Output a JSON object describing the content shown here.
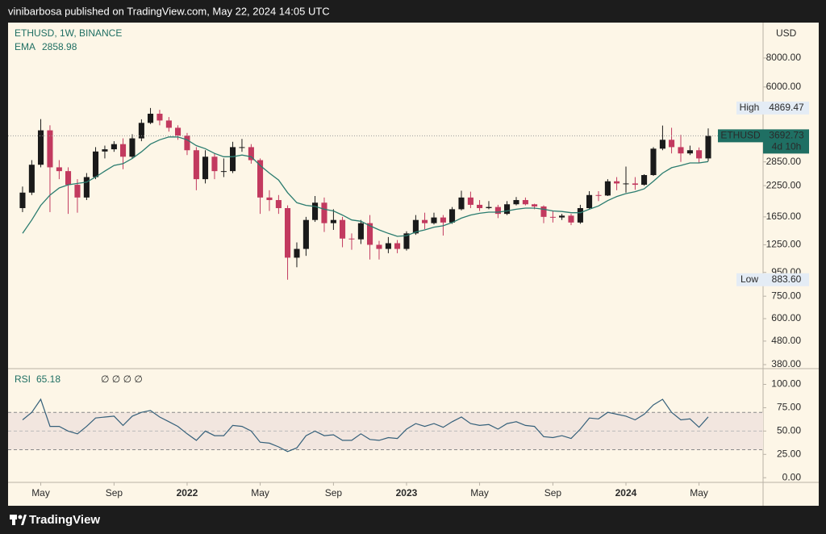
{
  "header": {
    "text": "vinibarbosa published on TradingView.com, May 22, 2024 14:05 UTC"
  },
  "footer": {
    "brand": "TradingView"
  },
  "chart_data": [
    {
      "type": "candlestick",
      "title": "ETHUSD, 1W, BINANCE",
      "currency": "USD",
      "log_scale": true,
      "grid": false,
      "up_color": "#1a1a1a",
      "down_color": "#c23a5f",
      "x": [
        2021.25,
        2021.292,
        2021.333,
        2021.375,
        2021.417,
        2021.458,
        2021.5,
        2021.542,
        2021.583,
        2021.625,
        2021.667,
        2021.708,
        2021.75,
        2021.792,
        2021.833,
        2021.875,
        2021.917,
        2021.958,
        2022.0,
        2022.042,
        2022.083,
        2022.125,
        2022.167,
        2022.208,
        2022.25,
        2022.292,
        2022.333,
        2022.375,
        2022.417,
        2022.458,
        2022.5,
        2022.542,
        2022.583,
        2022.625,
        2022.667,
        2022.708,
        2022.75,
        2022.792,
        2022.833,
        2022.875,
        2022.917,
        2022.958,
        2023.0,
        2023.042,
        2023.083,
        2023.125,
        2023.167,
        2023.208,
        2023.25,
        2023.292,
        2023.333,
        2023.375,
        2023.417,
        2023.458,
        2023.5,
        2023.542,
        2023.583,
        2023.625,
        2023.667,
        2023.708,
        2023.75,
        2023.792,
        2023.833,
        2023.875,
        2023.917,
        2023.958,
        2024.0,
        2024.042,
        2024.083,
        2024.125,
        2024.167,
        2024.208,
        2024.25,
        2024.292,
        2024.333,
        2024.375
      ],
      "open": [
        1800,
        2100,
        2770,
        3900,
        2700,
        2600,
        2270,
        2000,
        2450,
        3160,
        3230,
        3400,
        3000,
        3600,
        4200,
        4600,
        4300,
        4000,
        3700,
        3200,
        2400,
        3000,
        2600,
        2600,
        3300,
        3300,
        2900,
        2000,
        1950,
        1800,
        1100,
        1200,
        1600,
        1900,
        1550,
        1600,
        1330,
        1320,
        1550,
        1250,
        1200,
        1270,
        1200,
        1400,
        1600,
        1550,
        1640,
        1560,
        1780,
        2000,
        1860,
        1800,
        1820,
        1700,
        1870,
        1950,
        1870,
        1830,
        1650,
        1640,
        1670,
        1560,
        1800,
        2050,
        2040,
        2350,
        2300,
        2300,
        2270,
        2500,
        3250,
        3550,
        3300,
        3100,
        3200,
        2950
      ],
      "high": [
        2230,
        2900,
        4360,
        4100,
        2900,
        2700,
        2400,
        2550,
        3300,
        3350,
        3500,
        3600,
        3750,
        4350,
        4869.47,
        4780,
        4450,
        4100,
        3800,
        3300,
        3200,
        3100,
        2950,
        3480,
        3580,
        3400,
        2950,
        2150,
        2050,
        1850,
        1280,
        1650,
        2030,
        2000,
        1780,
        1650,
        1400,
        1600,
        1680,
        1300,
        1350,
        1310,
        1430,
        1680,
        1720,
        1720,
        1680,
        1820,
        2140,
        2120,
        1950,
        1930,
        1860,
        1930,
        2010,
        2000,
        1880,
        1850,
        1750,
        1700,
        1700,
        1860,
        2130,
        2130,
        2400,
        2450,
        2720,
        2450,
        2520,
        3300,
        4090,
        4000,
        3730,
        3350,
        3290,
        3975
      ],
      "low": [
        1730,
        2050,
        2700,
        1730,
        2400,
        1700,
        1720,
        1950,
        2400,
        2950,
        3150,
        2650,
        2950,
        3500,
        4150,
        4100,
        3850,
        3550,
        3050,
        2150,
        2300,
        2400,
        2450,
        2550,
        3150,
        2800,
        1700,
        1750,
        1700,
        883.6,
        1000,
        1120,
        1570,
        1420,
        1450,
        1220,
        1190,
        1260,
        1080,
        1080,
        1150,
        1150,
        1180,
        1380,
        1460,
        1530,
        1370,
        1540,
        1760,
        1800,
        1750,
        1780,
        1630,
        1680,
        1850,
        1850,
        1780,
        1550,
        1560,
        1600,
        1520,
        1540,
        1780,
        1930,
        2030,
        2150,
        2100,
        2160,
        2250,
        2480,
        3200,
        3100,
        2850,
        3050,
        2820,
        2870
      ],
      "close": [
        2100,
        2770,
        3900,
        2700,
        2600,
        2270,
        2000,
        2450,
        3160,
        3230,
        3400,
        3000,
        3600,
        4200,
        4600,
        4300,
        4000,
        3700,
        3200,
        2400,
        3000,
        2600,
        2600,
        3300,
        3300,
        2900,
        2000,
        1950,
        1800,
        1100,
        1200,
        1600,
        1900,
        1550,
        1600,
        1330,
        1320,
        1550,
        1250,
        1200,
        1270,
        1200,
        1400,
        1600,
        1550,
        1640,
        1560,
        1780,
        2000,
        1860,
        1800,
        1820,
        1700,
        1870,
        1950,
        1870,
        1830,
        1650,
        1640,
        1670,
        1560,
        1800,
        2050,
        2040,
        2350,
        2300,
        2300,
        2270,
        2500,
        3250,
        3550,
        3300,
        3100,
        3200,
        2950,
        3692.73
      ],
      "overlays": [
        {
          "name": "EMA",
          "color": "#2a7c6f",
          "values": [
            1400,
            1600,
            1850,
            2050,
            2200,
            2270,
            2300,
            2330,
            2450,
            2600,
            2750,
            2800,
            2950,
            3150,
            3400,
            3550,
            3650,
            3650,
            3550,
            3350,
            3250,
            3100,
            3000,
            3000,
            3050,
            3000,
            2750,
            2550,
            2380,
            2100,
            1900,
            1850,
            1830,
            1780,
            1750,
            1680,
            1600,
            1580,
            1510,
            1450,
            1400,
            1360,
            1370,
            1420,
            1450,
            1490,
            1510,
            1560,
            1630,
            1680,
            1710,
            1730,
            1730,
            1750,
            1780,
            1800,
            1800,
            1780,
            1750,
            1740,
            1720,
            1720,
            1780,
            1840,
            1940,
            2020,
            2080,
            2120,
            2180,
            2350,
            2550,
            2690,
            2750,
            2820,
            2820,
            2858.98
          ]
        }
      ],
      "xlim": [
        2021.184,
        2024.625
      ],
      "ylim": [
        368,
        11380
      ],
      "yticks": [
        {
          "value": 8000,
          "label": "8000.00"
        },
        {
          "value": 6000,
          "label": "6000.00"
        },
        {
          "value": 2850,
          "label": "2850.00"
        },
        {
          "value": 2250,
          "label": "2250.00"
        },
        {
          "value": 1650,
          "label": "1650.00"
        },
        {
          "value": 1250,
          "label": "1250.00"
        },
        {
          "value": 950,
          "label": "950.00"
        },
        {
          "value": 750,
          "label": "750.00"
        },
        {
          "value": 600,
          "label": "600.00"
        },
        {
          "value": 480,
          "label": "480.00"
        },
        {
          "value": 380,
          "label": "380.00"
        }
      ],
      "high_marker": {
        "label": "High",
        "value": 4869.47
      },
      "low_marker": {
        "label": "Low",
        "value": 883.6,
        "value_label": "883.60"
      },
      "last_price": {
        "name": "ETHUSD",
        "countdown": "4d 10h"
      }
    },
    {
      "type": "line",
      "title": "RSI",
      "flags": "∅ ∅ ∅ ∅",
      "x": [
        2021.25,
        2021.292,
        2021.333,
        2021.375,
        2021.417,
        2021.458,
        2021.5,
        2021.542,
        2021.583,
        2021.625,
        2021.667,
        2021.708,
        2021.75,
        2021.792,
        2021.833,
        2021.875,
        2021.917,
        2021.958,
        2022.0,
        2022.042,
        2022.083,
        2022.125,
        2022.167,
        2022.208,
        2022.25,
        2022.292,
        2022.333,
        2022.375,
        2022.417,
        2022.458,
        2022.5,
        2022.542,
        2022.583,
        2022.625,
        2022.667,
        2022.708,
        2022.75,
        2022.792,
        2022.833,
        2022.875,
        2022.917,
        2022.958,
        2023.0,
        2023.042,
        2023.083,
        2023.125,
        2023.167,
        2023.208,
        2023.25,
        2023.292,
        2023.333,
        2023.375,
        2023.417,
        2023.458,
        2023.5,
        2023.542,
        2023.583,
        2023.625,
        2023.667,
        2023.708,
        2023.75,
        2023.792,
        2023.833,
        2023.875,
        2023.917,
        2023.958,
        2024.0,
        2024.042,
        2024.083,
        2024.125,
        2024.167,
        2024.208,
        2024.25,
        2024.292,
        2024.333,
        2024.375
      ],
      "series": [
        {
          "name": "RSI",
          "color": "#35607a",
          "values": [
            62,
            70,
            84,
            55,
            55,
            50,
            47,
            55,
            64,
            65,
            66,
            56,
            66,
            70,
            72,
            65,
            60,
            55,
            47,
            40,
            50,
            45,
            45,
            56,
            55,
            50,
            38,
            37,
            33,
            28,
            32,
            45,
            50,
            45,
            46,
            40,
            40,
            47,
            41,
            40,
            43,
            42,
            52,
            58,
            55,
            58,
            54,
            60,
            65,
            58,
            56,
            57,
            52,
            58,
            60,
            56,
            55,
            44,
            43,
            45,
            42,
            52,
            64,
            63,
            70,
            68,
            66,
            62,
            68,
            78,
            84,
            70,
            62,
            63,
            54,
            65.18
          ]
        }
      ],
      "bands": [
        30,
        70
      ],
      "midline": 50,
      "band_color": "#f2e6df",
      "xlim": [
        2021.184,
        2024.625
      ],
      "ylim": [
        -5,
        116
      ],
      "yticks": [
        {
          "value": 100,
          "label": "100.00"
        },
        {
          "value": 75,
          "label": "75.00"
        },
        {
          "value": 50,
          "label": "50.00"
        },
        {
          "value": 25,
          "label": "25.00"
        },
        {
          "value": 0,
          "label": "0.00"
        }
      ],
      "xticks": [
        {
          "value": 2021.333,
          "label": "May"
        },
        {
          "value": 2021.667,
          "label": "Sep"
        },
        2022,
        {
          "value": 2022.333,
          "label": "May"
        },
        {
          "value": 2022.667,
          "label": "Sep"
        },
        2023,
        {
          "value": 2023.333,
          "label": "May"
        },
        {
          "value": 2023.667,
          "label": "Sep"
        },
        2024,
        {
          "value": 2024.333,
          "label": "May"
        }
      ]
    }
  ]
}
